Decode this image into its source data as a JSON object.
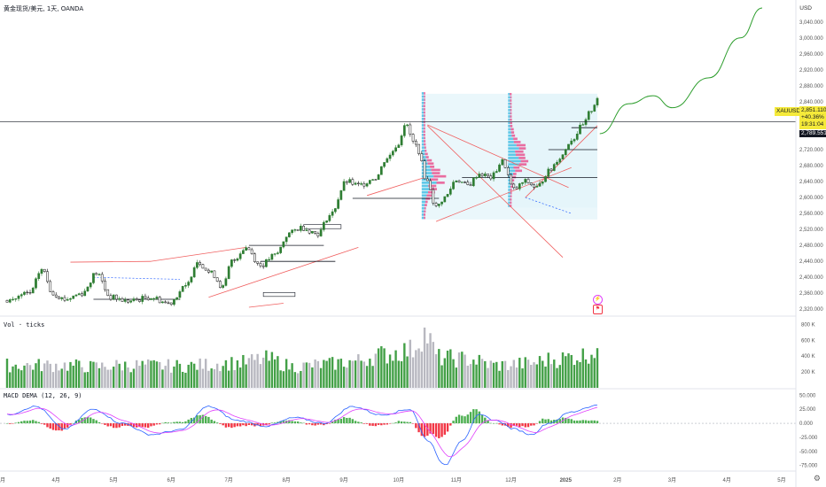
{
  "header": {
    "symbol_title": "黄金现货/美元",
    "interval": "1天",
    "exchange": "OANDA"
  },
  "currency_label": "USD",
  "volume_pane": {
    "label": "Vol · ticks"
  },
  "macd_pane": {
    "label": "MACD DEMA (12, 26, 9)"
  },
  "price_tags": {
    "symbol": "XAUUSD",
    "last_price": "2,851.110",
    "change_pct": "+40.36%",
    "countdown": "19:31:04",
    "crosshair_price": "2,789.551"
  },
  "colors": {
    "up": "#2e7d32",
    "down": "#111111",
    "volume_up": "#43a047",
    "volume_down": "#b8b8c0",
    "macd_hist_up": "#4caf50",
    "macd_hist_down": "#f23645",
    "macd_line": "#2962ff",
    "signal_line": "#e040fb",
    "projection": "#2e9e2e",
    "trend_line": "#f06060",
    "vp_up": "#5ec8e8",
    "vp_down": "#e84a8a",
    "last_price_bg": "#f5ea3a",
    "crosshair_bg": "#131722"
  },
  "icons": {
    "event_icon": "lightning-icon",
    "earnings_icon": "flag-icon",
    "settings_icon": "gear-icon"
  },
  "chart_data": {
    "type": "candlestick",
    "price_axis": {
      "ticks": [
        "3,080.000",
        "3,040.000",
        "3,000.000",
        "2,960.000",
        "2,920.000",
        "2,880.000",
        "2,840.000",
        "2,800.000",
        "2,760.000",
        "2,720.000",
        "2,680.000",
        "2,640.000",
        "2,600.000",
        "2,560.000",
        "2,520.000",
        "2,480.000",
        "2,440.000",
        "2,400.000",
        "2,360.000",
        "2,320.000"
      ],
      "range": [
        2305,
        3095
      ]
    },
    "time_axis": {
      "ticks": [
        "3月",
        "4月",
        "5月",
        "6月",
        "7月",
        "8月",
        "9月",
        "10月",
        "11月",
        "12月",
        "2025",
        "2月",
        "3月",
        "4月",
        "5月"
      ]
    },
    "price_anchors": [
      [
        0,
        2342
      ],
      [
        8,
        2360
      ],
      [
        12,
        2420
      ],
      [
        16,
        2360
      ],
      [
        20,
        2345
      ],
      [
        26,
        2360
      ],
      [
        31,
        2410
      ],
      [
        36,
        2350
      ],
      [
        42,
        2340
      ],
      [
        50,
        2350
      ],
      [
        56,
        2335
      ],
      [
        62,
        2375
      ],
      [
        66,
        2440
      ],
      [
        71,
        2410
      ],
      [
        75,
        2375
      ],
      [
        78,
        2440
      ],
      [
        83,
        2475
      ],
      [
        88,
        2430
      ],
      [
        93,
        2455
      ],
      [
        98,
        2510
      ],
      [
        102,
        2525
      ],
      [
        108,
        2510
      ],
      [
        112,
        2555
      ],
      [
        118,
        2640
      ],
      [
        122,
        2630
      ],
      [
        128,
        2650
      ],
      [
        132,
        2700
      ],
      [
        136,
        2735
      ],
      [
        138,
        2785
      ],
      [
        142,
        2730
      ],
      [
        146,
        2640
      ],
      [
        149,
        2575
      ],
      [
        152,
        2600
      ],
      [
        156,
        2645
      ],
      [
        160,
        2630
      ],
      [
        164,
        2660
      ],
      [
        168,
        2650
      ],
      [
        172,
        2690
      ],
      [
        176,
        2620
      ],
      [
        180,
        2640
      ],
      [
        184,
        2625
      ],
      [
        188,
        2665
      ],
      [
        192,
        2700
      ],
      [
        196,
        2745
      ],
      [
        200,
        2780
      ],
      [
        203,
        2820
      ],
      [
        205,
        2851
      ]
    ],
    "volume_axis": {
      "ticks": [
        "800 K",
        "600 K",
        "400 K",
        "200 K"
      ],
      "max": 850
    },
    "macd_axis": {
      "ticks": [
        "50.000",
        "25.000",
        "0.000",
        "-25.000",
        "-50.000",
        "-75.000"
      ],
      "range": [
        -85,
        60
      ]
    },
    "macd_anchors": [
      [
        0,
        15
      ],
      [
        10,
        30
      ],
      [
        20,
        -10
      ],
      [
        30,
        25
      ],
      [
        40,
        0
      ],
      [
        50,
        -20
      ],
      [
        60,
        -12
      ],
      [
        70,
        30
      ],
      [
        80,
        5
      ],
      [
        90,
        -5
      ],
      [
        100,
        10
      ],
      [
        110,
        0
      ],
      [
        120,
        30
      ],
      [
        130,
        15
      ],
      [
        140,
        25
      ],
      [
        146,
        -30
      ],
      [
        152,
        -75
      ],
      [
        158,
        -30
      ],
      [
        164,
        15
      ],
      [
        170,
        5
      ],
      [
        176,
        -10
      ],
      [
        182,
        -20
      ],
      [
        188,
        0
      ],
      [
        196,
        20
      ],
      [
        203,
        30
      ],
      [
        205,
        33
      ]
    ],
    "volume_anchors": [
      [
        0,
        300
      ],
      [
        20,
        300
      ],
      [
        30,
        280
      ],
      [
        40,
        300
      ],
      [
        60,
        290
      ],
      [
        80,
        330
      ],
      [
        90,
        380
      ],
      [
        100,
        280
      ],
      [
        110,
        310
      ],
      [
        120,
        350
      ],
      [
        130,
        440
      ],
      [
        140,
        500
      ],
      [
        145,
        720
      ],
      [
        150,
        400
      ],
      [
        160,
        380
      ],
      [
        170,
        300
      ],
      [
        180,
        320
      ],
      [
        190,
        380
      ],
      [
        200,
        430
      ],
      [
        205,
        520
      ]
    ],
    "projection_points": [
      [
        2760,
        0
      ],
      [
        2835,
        12
      ],
      [
        2855,
        22
      ],
      [
        2825,
        30
      ],
      [
        2900,
        45
      ],
      [
        3000,
        58
      ],
      [
        3075,
        67
      ]
    ]
  }
}
